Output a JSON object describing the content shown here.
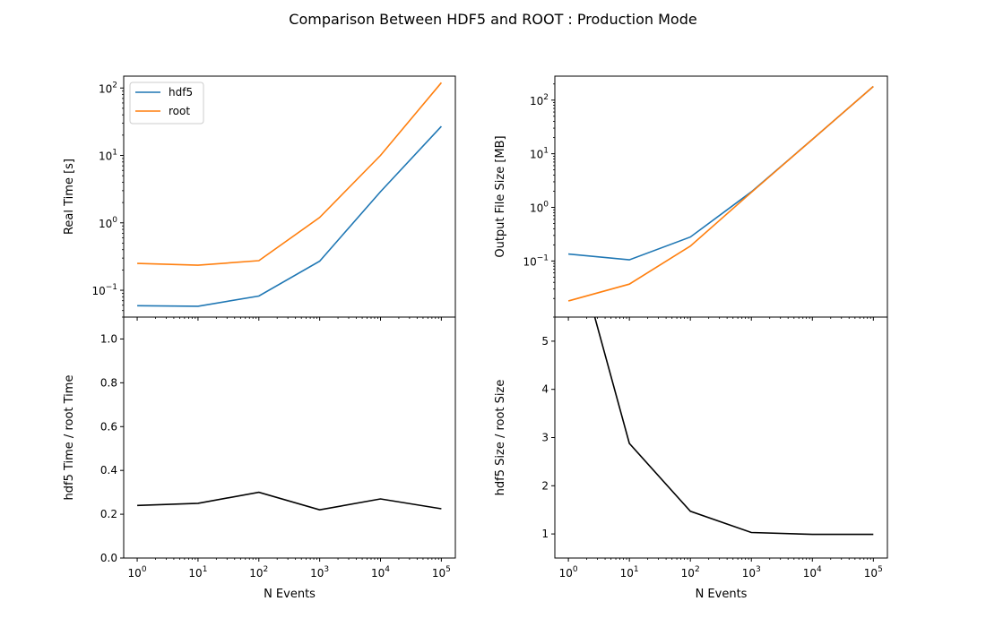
{
  "figure": {
    "title": "Comparison Between HDF5 and ROOT : Production Mode"
  },
  "colors": {
    "hdf5": "#1f77b4",
    "root": "#ff7f0e",
    "ratio": "#000000"
  },
  "chart_data": [
    {
      "type": "line",
      "panel": "top-left",
      "xscale": "log",
      "yscale": "log",
      "x": [
        1,
        10,
        100,
        1000,
        10000,
        100000
      ],
      "xlabel": "",
      "ylabel": "Real Time [s]",
      "ylim": [
        0.04,
        150
      ],
      "yticks": [
        {
          "value": 0.1,
          "base": "10",
          "exp": "−1"
        },
        {
          "value": 1,
          "base": "10",
          "exp": "0"
        },
        {
          "value": 10,
          "base": "10",
          "exp": "1"
        },
        {
          "value": 100,
          "base": "10",
          "exp": "2"
        }
      ],
      "legend": {
        "placement": "top-left",
        "entries": [
          "hdf5",
          "root"
        ]
      },
      "series": [
        {
          "name": "hdf5",
          "values": [
            0.059,
            0.058,
            0.082,
            0.27,
            2.9,
            27
          ]
        },
        {
          "name": "root",
          "values": [
            0.25,
            0.235,
            0.275,
            1.2,
            10,
            120
          ]
        }
      ]
    },
    {
      "type": "line",
      "panel": "top-right",
      "xscale": "log",
      "yscale": "log",
      "x": [
        1,
        10,
        100,
        1000,
        10000,
        100000
      ],
      "xlabel": "",
      "ylabel": "Output File Size [MB]",
      "ylim": [
        0.009,
        280
      ],
      "yticks": [
        {
          "value": 0.1,
          "base": "10",
          "exp": "−1"
        },
        {
          "value": 1,
          "base": "10",
          "exp": "0"
        },
        {
          "value": 10,
          "base": "10",
          "exp": "1"
        },
        {
          "value": 100,
          "base": "10",
          "exp": "2"
        }
      ],
      "series": [
        {
          "name": "hdf5",
          "values": [
            0.135,
            0.105,
            0.28,
            1.95,
            18.5,
            180
          ]
        },
        {
          "name": "root",
          "values": [
            0.018,
            0.037,
            0.19,
            1.9,
            18.5,
            180
          ]
        }
      ]
    },
    {
      "type": "line",
      "panel": "bottom-left",
      "xscale": "log",
      "yscale": "linear",
      "x": [
        1,
        10,
        100,
        1000,
        10000,
        100000
      ],
      "xlabel": "N Events",
      "ylabel": "hdf5 Time / root Time",
      "ylim": [
        0.0,
        1.1
      ],
      "yticks": [
        {
          "value": 0.0,
          "label": "0.0"
        },
        {
          "value": 0.2,
          "label": "0.2"
        },
        {
          "value": 0.4,
          "label": "0.4"
        },
        {
          "value": 0.6,
          "label": "0.6"
        },
        {
          "value": 0.8,
          "label": "0.8"
        },
        {
          "value": 1.0,
          "label": "1.0"
        }
      ],
      "series": [
        {
          "values": [
            0.24,
            0.25,
            0.3,
            0.22,
            0.27,
            0.225
          ]
        }
      ]
    },
    {
      "type": "line",
      "panel": "bottom-right",
      "xscale": "log",
      "yscale": "linear",
      "x": [
        1,
        10,
        100,
        1000,
        10000,
        100000
      ],
      "xlabel": "N Events",
      "ylabel": "hdf5 Size / root Size",
      "ylim": [
        0.5,
        5.5
      ],
      "yticks": [
        {
          "value": 1,
          "label": "1"
        },
        {
          "value": 2,
          "label": "2"
        },
        {
          "value": 3,
          "label": "3"
        },
        {
          "value": 4,
          "label": "4"
        },
        {
          "value": 5,
          "label": "5"
        }
      ],
      "series": [
        {
          "values": [
            7.5,
            2.88,
            1.47,
            1.03,
            0.99,
            0.99
          ]
        }
      ]
    }
  ],
  "xticks": [
    {
      "value": 1,
      "base": "10",
      "exp": "0"
    },
    {
      "value": 10,
      "base": "10",
      "exp": "1"
    },
    {
      "value": 100,
      "base": "10",
      "exp": "2"
    },
    {
      "value": 1000,
      "base": "10",
      "exp": "3"
    },
    {
      "value": 10000,
      "base": "10",
      "exp": "4"
    },
    {
      "value": 100000,
      "base": "10",
      "exp": "5"
    }
  ],
  "xlim": [
    0.6,
    170000
  ]
}
